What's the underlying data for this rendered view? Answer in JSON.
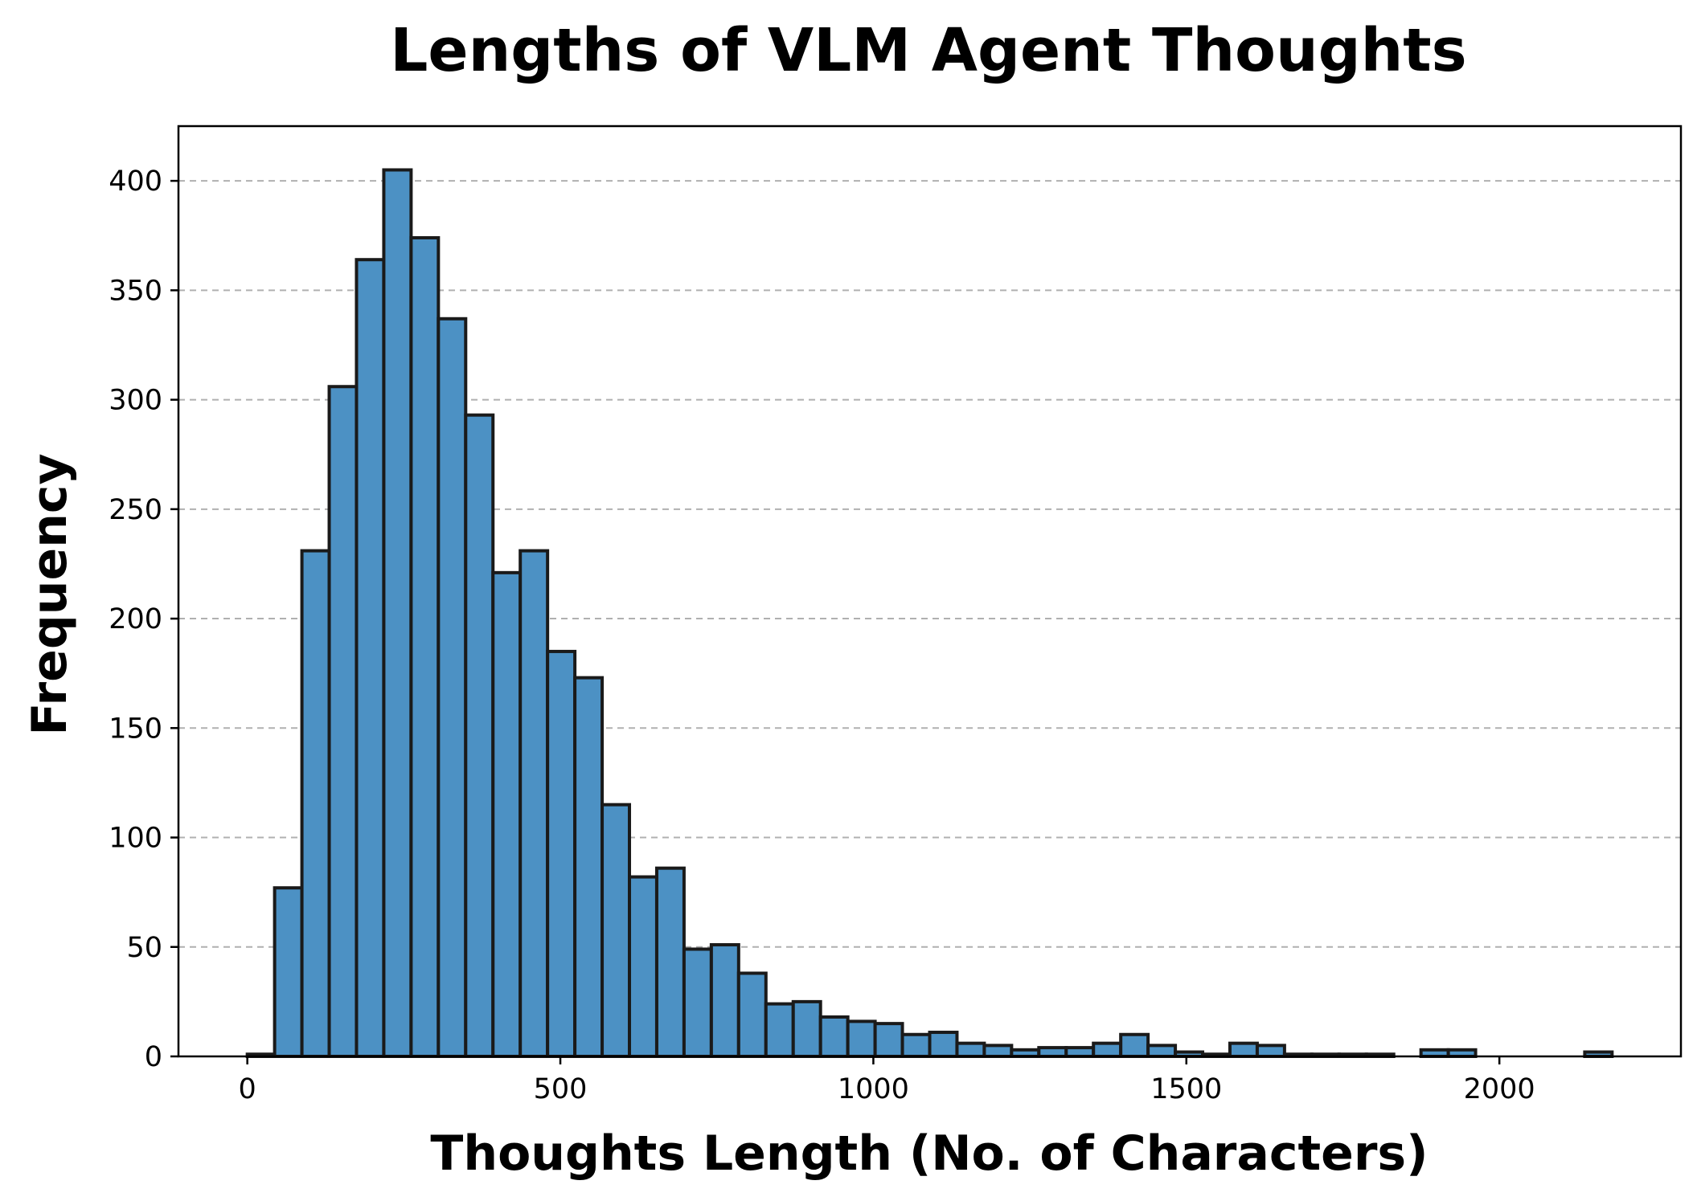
{
  "chart_data": {
    "type": "bar",
    "title": "Lengths of VLM Agent Thoughts",
    "xlabel": "Thoughts Length (No. of Characters)",
    "ylabel": "Frequency",
    "xlim": [
      -110,
      2290
    ],
    "ylim": [
      0,
      425
    ],
    "x_ticks": [
      0,
      500,
      1000,
      1500,
      2000
    ],
    "y_ticks": [
      0,
      50,
      100,
      150,
      200,
      250,
      300,
      350,
      400
    ],
    "grid": "y-dashed",
    "bar_color": "#4c91c4",
    "edge_color": "#1a1a1a",
    "bin_width": 43.6,
    "bin_start": 0,
    "values": [
      1,
      77,
      231,
      306,
      364,
      405,
      374,
      337,
      293,
      221,
      231,
      185,
      173,
      115,
      82,
      86,
      49,
      51,
      38,
      24,
      25,
      18,
      16,
      15,
      10,
      11,
      6,
      5,
      3,
      4,
      4,
      6,
      10,
      5,
      2,
      1,
      6,
      5,
      1,
      1,
      1,
      1,
      0,
      3,
      3,
      0,
      0,
      0,
      0,
      2
    ]
  }
}
